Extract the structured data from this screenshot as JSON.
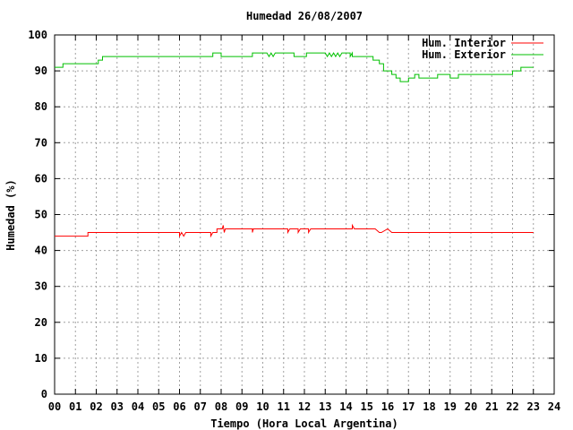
{
  "chart_data": {
    "type": "line",
    "title": "Humedad 26/08/2007",
    "xlabel": "Tiempo (Hora Local Argentina)",
    "ylabel": "Humedad (%)",
    "xlim": [
      0,
      24
    ],
    "ylim": [
      0,
      100
    ],
    "x_ticks": [
      "00",
      "01",
      "02",
      "03",
      "04",
      "05",
      "06",
      "07",
      "08",
      "09",
      "10",
      "11",
      "12",
      "13",
      "14",
      "15",
      "16",
      "17",
      "18",
      "19",
      "20",
      "21",
      "22",
      "23",
      "24"
    ],
    "y_ticks": [
      0,
      10,
      20,
      30,
      40,
      50,
      60,
      70,
      80,
      90,
      100
    ],
    "grid": true,
    "legend_position": "top-right",
    "series": [
      {
        "name": "Hum. Interior",
        "color": "#ff0000",
        "points": [
          [
            0,
            44
          ],
          [
            1.6,
            44
          ],
          [
            1.6,
            45
          ],
          [
            6.0,
            45
          ],
          [
            6.0,
            44
          ],
          [
            6.1,
            45
          ],
          [
            6.2,
            44
          ],
          [
            6.3,
            45
          ],
          [
            7.5,
            45
          ],
          [
            7.5,
            44
          ],
          [
            7.6,
            45
          ],
          [
            7.8,
            45
          ],
          [
            7.8,
            46
          ],
          [
            8.05,
            46
          ],
          [
            8.1,
            47
          ],
          [
            8.15,
            45
          ],
          [
            8.2,
            46
          ],
          [
            9.5,
            46
          ],
          [
            9.5,
            45
          ],
          [
            9.55,
            46
          ],
          [
            11.2,
            46
          ],
          [
            11.2,
            45
          ],
          [
            11.3,
            46
          ],
          [
            11.7,
            46
          ],
          [
            11.7,
            45
          ],
          [
            11.8,
            46
          ],
          [
            12.2,
            46
          ],
          [
            12.2,
            45
          ],
          [
            12.3,
            46
          ],
          [
            14.3,
            46
          ],
          [
            14.3,
            47
          ],
          [
            14.4,
            46
          ],
          [
            15.4,
            46
          ],
          [
            15.6,
            45
          ],
          [
            15.7,
            45
          ],
          [
            16.0,
            46
          ],
          [
            16.2,
            45
          ],
          [
            23.0,
            45
          ]
        ]
      },
      {
        "name": "Hum. Exterior",
        "color": "#00c000",
        "points": [
          [
            0,
            91
          ],
          [
            0.4,
            91
          ],
          [
            0.4,
            92
          ],
          [
            2.1,
            92
          ],
          [
            2.1,
            93
          ],
          [
            2.3,
            93
          ],
          [
            2.3,
            94
          ],
          [
            7.6,
            94
          ],
          [
            7.6,
            95
          ],
          [
            8.0,
            95
          ],
          [
            8.0,
            94
          ],
          [
            9.5,
            94
          ],
          [
            9.5,
            95
          ],
          [
            10.2,
            95
          ],
          [
            10.3,
            94
          ],
          [
            10.4,
            95
          ],
          [
            10.5,
            94
          ],
          [
            10.6,
            95
          ],
          [
            11.5,
            95
          ],
          [
            11.5,
            94
          ],
          [
            12.1,
            94
          ],
          [
            12.1,
            95
          ],
          [
            13.0,
            95
          ],
          [
            13.1,
            94
          ],
          [
            13.2,
            95
          ],
          [
            13.3,
            94
          ],
          [
            13.4,
            95
          ],
          [
            13.5,
            94
          ],
          [
            13.6,
            95
          ],
          [
            13.7,
            94
          ],
          [
            13.8,
            95
          ],
          [
            14.2,
            95
          ],
          [
            14.2,
            94
          ],
          [
            14.3,
            95
          ],
          [
            14.3,
            94
          ],
          [
            15.3,
            94
          ],
          [
            15.3,
            93
          ],
          [
            15.6,
            93
          ],
          [
            15.6,
            92
          ],
          [
            15.8,
            92
          ],
          [
            15.8,
            90
          ],
          [
            16.2,
            90
          ],
          [
            16.2,
            89
          ],
          [
            16.4,
            89
          ],
          [
            16.4,
            88
          ],
          [
            16.6,
            88
          ],
          [
            16.6,
            87
          ],
          [
            17.0,
            87
          ],
          [
            17.0,
            88
          ],
          [
            17.3,
            88
          ],
          [
            17.3,
            89
          ],
          [
            17.5,
            89
          ],
          [
            17.5,
            88
          ],
          [
            18.4,
            88
          ],
          [
            18.4,
            89
          ],
          [
            19.0,
            89
          ],
          [
            19.0,
            88
          ],
          [
            19.4,
            88
          ],
          [
            19.4,
            89
          ],
          [
            22.0,
            89
          ],
          [
            22.0,
            90
          ],
          [
            22.4,
            90
          ],
          [
            22.4,
            91
          ],
          [
            23.0,
            91
          ]
        ]
      }
    ]
  }
}
